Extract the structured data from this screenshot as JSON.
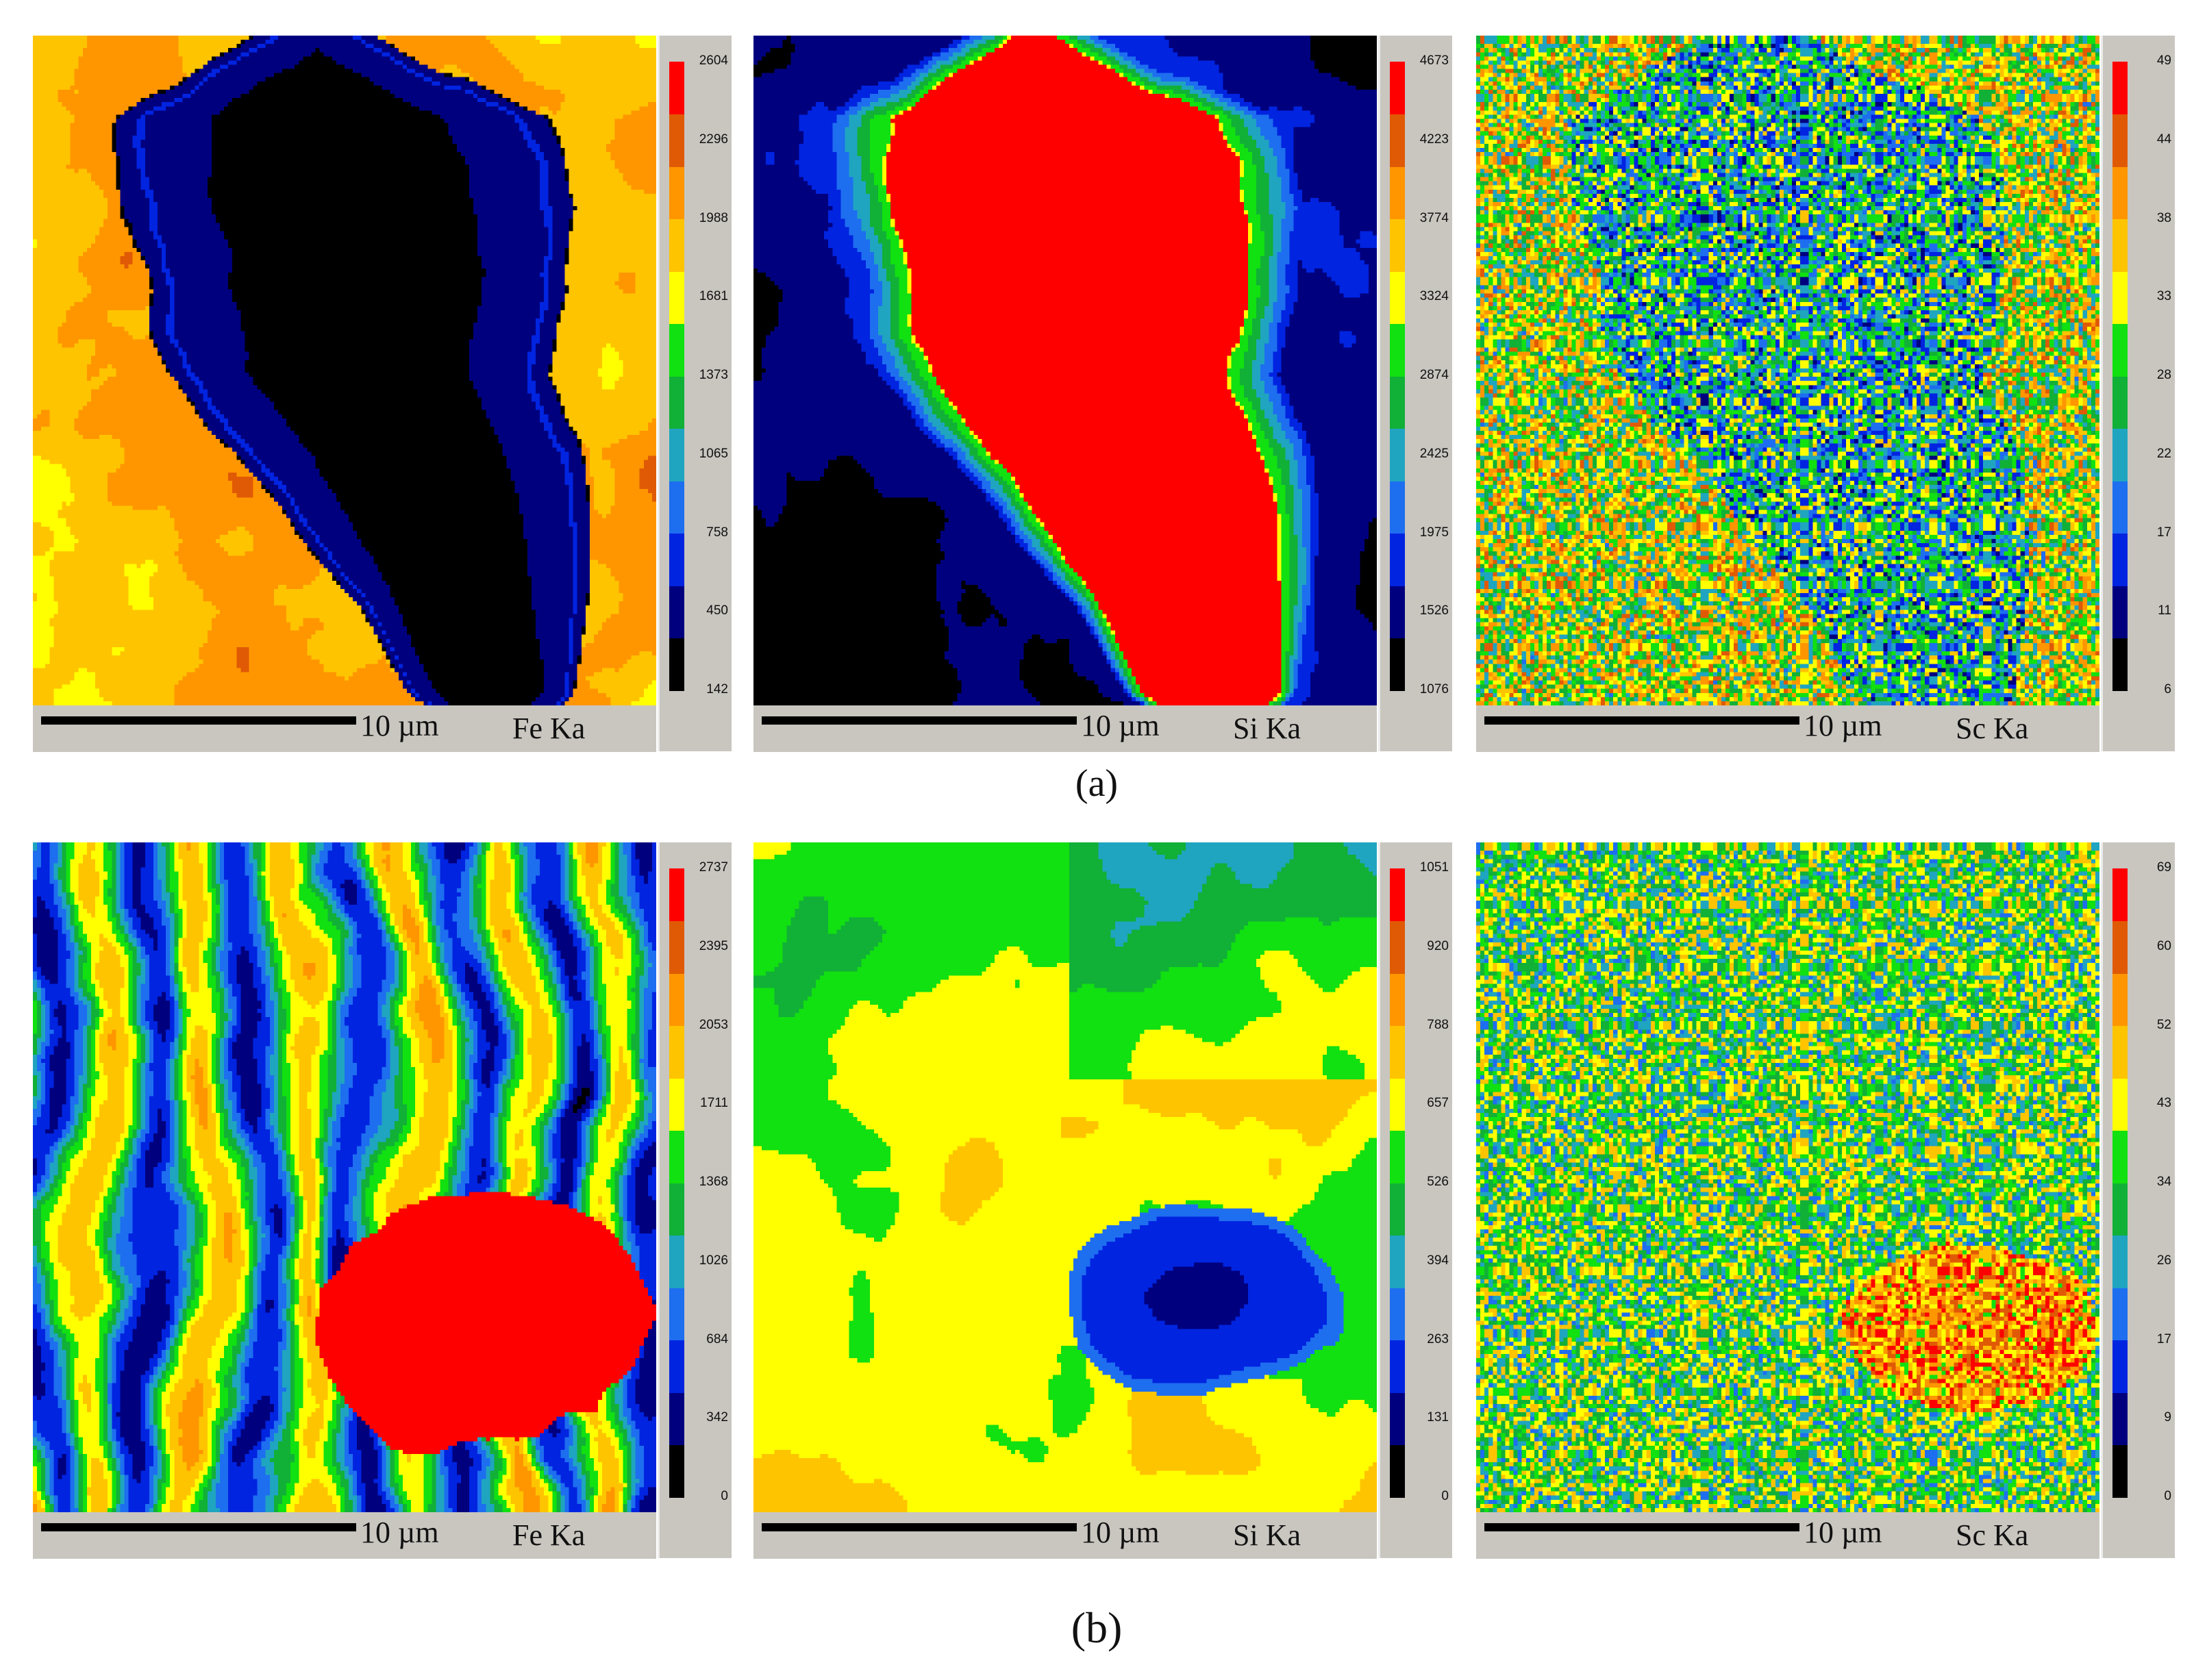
{
  "captions": [
    "(a)",
    "(b)"
  ],
  "colors": {
    "scale": [
      "#000000",
      "#00007f",
      "#0024e0",
      "#1e6ef0",
      "#1fa5c0",
      "#11b037",
      "#11e011",
      "#ffff00",
      "#ffc400",
      "#ff9600",
      "#e05a05",
      "#ff0000"
    ],
    "panel_bg": "#c9c6c0"
  },
  "rows": [
    {
      "caption": "(a)",
      "maps": [
        {
          "element": "Fe Ka",
          "scale_label": "10 µm",
          "ticks": [
            "2604",
            "2296",
            "1988",
            "1681",
            "1373",
            "1065",
            "758",
            "450",
            "142"
          ]
        },
        {
          "element": "Si Ka",
          "scale_label": "10 µm",
          "ticks": [
            "4673",
            "4223",
            "3774",
            "3324",
            "2874",
            "2425",
            "1975",
            "1526",
            "1076"
          ]
        },
        {
          "element": "Sc Ka",
          "scale_label": "10 µm",
          "ticks": [
            "49",
            "44",
            "38",
            "33",
            "28",
            "22",
            "17",
            "11",
            "6"
          ]
        }
      ]
    },
    {
      "caption": "(b)",
      "maps": [
        {
          "element": "Fe Ka",
          "scale_label": "10 µm",
          "ticks": [
            "2737",
            "2395",
            "2053",
            "1711",
            "1368",
            "1026",
            "684",
            "342",
            "0"
          ]
        },
        {
          "element": "Si Ka",
          "scale_label": "10 µm",
          "ticks": [
            "1051",
            "920",
            "788",
            "657",
            "526",
            "394",
            "263",
            "131",
            "0"
          ]
        },
        {
          "element": "Sc Ka",
          "scale_label": "10 µm",
          "ticks": [
            "69",
            "60",
            "52",
            "43",
            "34",
            "26",
            "17",
            "9",
            "0"
          ]
        }
      ]
    }
  ]
}
